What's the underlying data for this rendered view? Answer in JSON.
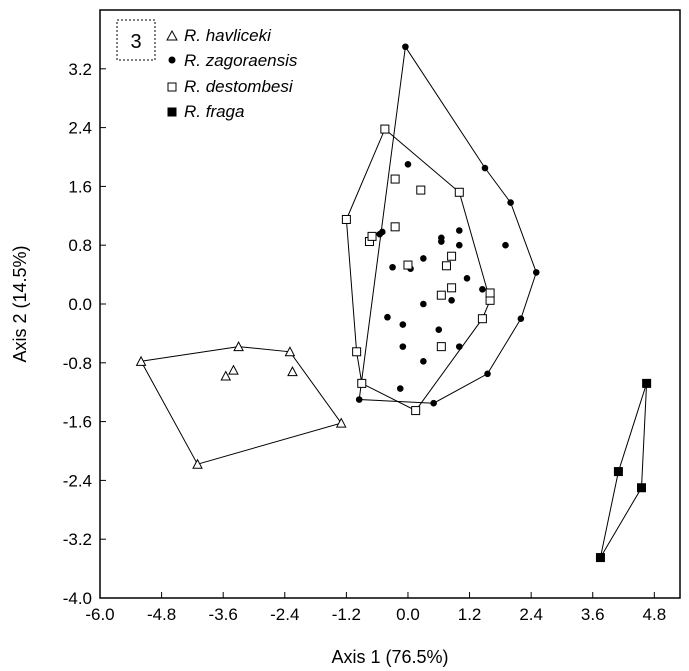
{
  "chart_data": {
    "type": "scatter",
    "panel_label": "3",
    "xlabel": "Axis 1 (76.5%)",
    "ylabel": "Axis 2 (14.5%)",
    "xlim": [
      -6.0,
      5.3
    ],
    "ylim": [
      -4.0,
      4.0
    ],
    "x_ticks": [
      -6.0,
      -4.8,
      -3.6,
      -2.4,
      -1.2,
      0.0,
      1.2,
      2.4,
      3.6,
      4.8
    ],
    "x_tick_labels": [
      "-6.0",
      "-4.8",
      "-3.6",
      "-2.4",
      "-1.2",
      "0.0",
      "1.2",
      "2.4",
      "3.6",
      "4.8"
    ],
    "y_ticks": [
      3.2,
      2.4,
      1.6,
      0.8,
      0.0,
      -0.8,
      -1.6,
      -2.4,
      -3.2,
      -4.0
    ],
    "y_tick_labels": [
      "3.2",
      "2.4",
      "1.6",
      "0.8",
      "0.0",
      "-0.8",
      "-1.6",
      "-2.4",
      "-3.2",
      "-4.0"
    ],
    "grid": false,
    "legend_position": "top-left",
    "series": [
      {
        "name": "R. havliceki",
        "marker": "open-triangle",
        "points": [
          [
            -5.2,
            -0.78
          ],
          [
            -4.1,
            -2.18
          ],
          [
            -3.3,
            -0.58
          ],
          [
            -2.3,
            -0.65
          ],
          [
            -2.25,
            -0.92
          ],
          [
            -1.3,
            -1.62
          ],
          [
            -3.55,
            -0.98
          ],
          [
            -3.4,
            -0.9
          ]
        ],
        "hull": [
          [
            -5.2,
            -0.78
          ],
          [
            -3.3,
            -0.58
          ],
          [
            -2.3,
            -0.65
          ],
          [
            -1.3,
            -1.62
          ],
          [
            -4.1,
            -2.18
          ]
        ]
      },
      {
        "name": "R. zagoraensis",
        "marker": "filled-circle",
        "points": [
          [
            -0.05,
            3.5
          ],
          [
            1.5,
            1.85
          ],
          [
            2.0,
            1.38
          ],
          [
            2.5,
            0.43
          ],
          [
            2.2,
            -0.2
          ],
          [
            1.55,
            -0.95
          ],
          [
            0.5,
            -1.35
          ],
          [
            -0.95,
            -1.3
          ],
          [
            -0.55,
            0.95
          ],
          [
            -0.5,
            0.98
          ],
          [
            0.0,
            1.9
          ],
          [
            0.65,
            0.9
          ],
          [
            0.65,
            0.85
          ],
          [
            1.0,
            1.0
          ],
          [
            1.9,
            0.8
          ],
          [
            1.0,
            0.8
          ],
          [
            -0.3,
            0.5
          ],
          [
            0.05,
            0.48
          ],
          [
            0.3,
            0.62
          ],
          [
            0.85,
            0.05
          ],
          [
            1.15,
            0.35
          ],
          [
            1.45,
            0.2
          ],
          [
            0.3,
            0.0
          ],
          [
            -0.4,
            -0.18
          ],
          [
            -0.1,
            -0.28
          ],
          [
            -0.1,
            -0.58
          ],
          [
            0.6,
            -0.35
          ],
          [
            1.0,
            -0.58
          ],
          [
            0.3,
            -0.78
          ],
          [
            -0.15,
            -1.15
          ]
        ],
        "hull": [
          [
            -0.05,
            3.5
          ],
          [
            1.5,
            1.85
          ],
          [
            2.0,
            1.38
          ],
          [
            2.5,
            0.43
          ],
          [
            2.2,
            -0.2
          ],
          [
            1.55,
            -0.95
          ],
          [
            0.5,
            -1.35
          ],
          [
            -0.95,
            -1.3
          ]
        ]
      },
      {
        "name": "R. destombesi",
        "marker": "open-square",
        "points": [
          [
            -0.45,
            2.38
          ],
          [
            1.0,
            1.52
          ],
          [
            1.6,
            0.05
          ],
          [
            1.45,
            -0.2
          ],
          [
            0.15,
            -1.45
          ],
          [
            -0.9,
            -1.08
          ],
          [
            -1.0,
            -0.65
          ],
          [
            -1.2,
            1.15
          ],
          [
            -0.75,
            0.85
          ],
          [
            -0.7,
            0.92
          ],
          [
            -0.25,
            1.7
          ],
          [
            0.25,
            1.55
          ],
          [
            -0.25,
            1.05
          ],
          [
            0.75,
            0.52
          ],
          [
            0.85,
            0.65
          ],
          [
            0.85,
            0.22
          ],
          [
            0.65,
            0.12
          ],
          [
            1.6,
            0.15
          ],
          [
            0.0,
            0.53
          ],
          [
            0.65,
            -0.58
          ]
        ],
        "hull": [
          [
            -0.45,
            2.38
          ],
          [
            1.0,
            1.52
          ],
          [
            1.6,
            0.05
          ],
          [
            1.45,
            -0.2
          ],
          [
            0.15,
            -1.45
          ],
          [
            -0.9,
            -1.08
          ],
          [
            -1.0,
            -0.65
          ],
          [
            -1.2,
            1.15
          ]
        ]
      },
      {
        "name": "R. fraga",
        "marker": "filled-square",
        "points": [
          [
            4.65,
            -1.08
          ],
          [
            4.55,
            -2.5
          ],
          [
            4.1,
            -2.28
          ],
          [
            3.75,
            -3.45
          ]
        ],
        "hull": [
          [
            4.65,
            -1.08
          ],
          [
            4.55,
            -2.5
          ],
          [
            3.75,
            -3.45
          ],
          [
            4.1,
            -2.28
          ]
        ]
      }
    ]
  }
}
